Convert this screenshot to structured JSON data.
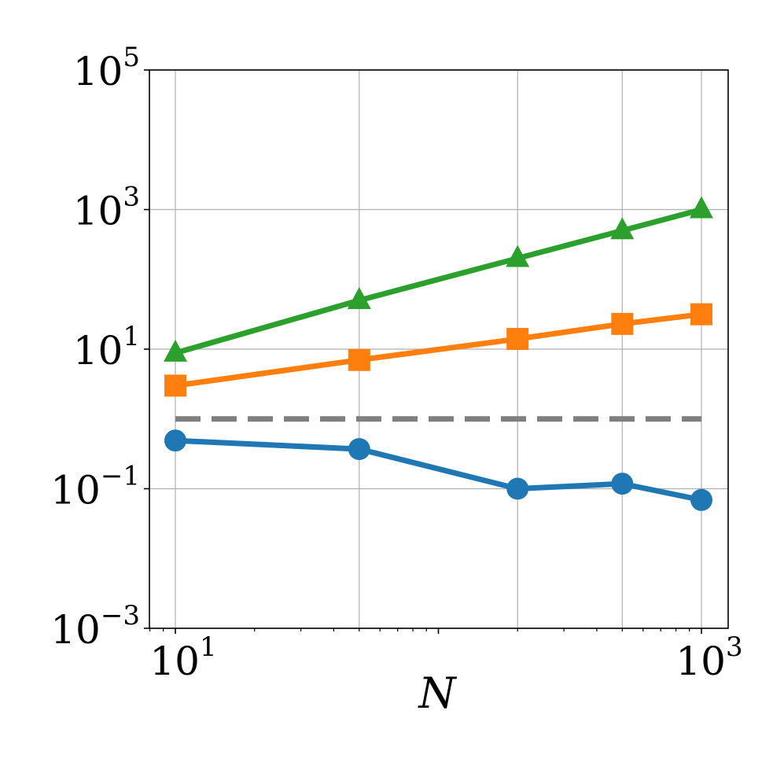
{
  "chart_data": {
    "type": "line",
    "title": "",
    "xlabel": "N",
    "ylabel": "",
    "xscale": "log",
    "yscale": "log",
    "xlim": [
      8.0,
      1100
    ],
    "ylim": [
      0.001,
      100000
    ],
    "grid": true,
    "legend": null,
    "x": [
      10,
      50,
      200,
      500,
      1000
    ],
    "xticks": [
      {
        "base": "10",
        "exp": "1",
        "value": 10
      },
      {
        "base": "10",
        "exp": "3",
        "value": 1000
      }
    ],
    "yticks": [
      {
        "base": "10",
        "exp": "5",
        "value": 100000
      },
      {
        "base": "10",
        "exp": "3",
        "value": 1000
      },
      {
        "base": "10",
        "exp": "1",
        "value": 10
      },
      {
        "base": "10",
        "exp": "−1",
        "value": 0.1
      },
      {
        "base": "10",
        "exp": "−3",
        "value": 0.001
      }
    ],
    "series": [
      {
        "name": "series-green-triangle",
        "color": "#2ca02c",
        "marker": "triangle",
        "values": [
          8.8,
          50,
          200,
          500,
          1000
        ]
      },
      {
        "name": "series-orange-square",
        "color": "#ff7f0e",
        "marker": "square",
        "values": [
          3.0,
          7.0,
          14,
          23,
          31.6
        ]
      },
      {
        "name": "series-blue-circle",
        "color": "#1f77b4",
        "marker": "circle",
        "values": [
          0.49,
          0.37,
          0.1,
          0.118,
          0.069
        ]
      }
    ],
    "reference_lines": [
      {
        "name": "reference-y-1",
        "color": "#7f7f7f",
        "style": "dashed",
        "y": 1,
        "x_range": [
          10,
          1000
        ]
      }
    ]
  }
}
